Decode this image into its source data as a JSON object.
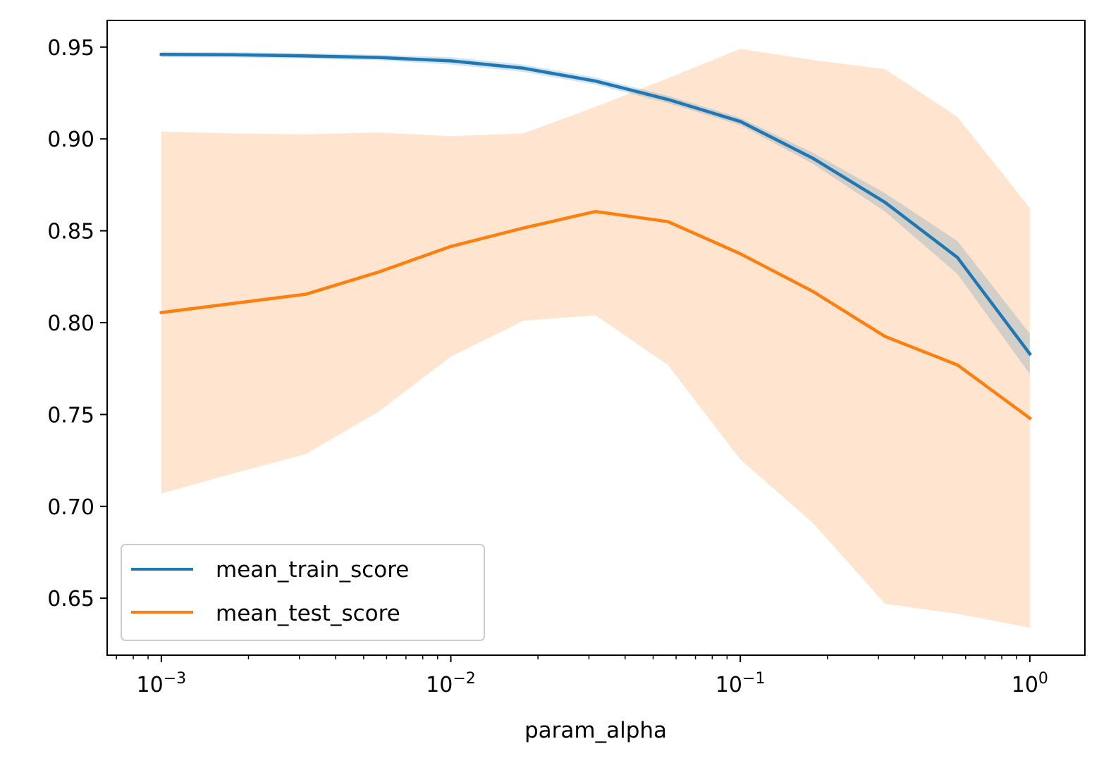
{
  "chart_data": {
    "type": "line",
    "xscale": "log",
    "xlabel": "param_alpha",
    "ylabel": "",
    "title": "",
    "xlim": [
      0.00065,
      1.55
    ],
    "ylim": [
      0.619,
      0.9645
    ],
    "grid": false,
    "legend_position": "lower-left",
    "x": [
      0.001,
      0.00178,
      0.00316,
      0.00562,
      0.01,
      0.0178,
      0.0316,
      0.0562,
      0.1,
      0.178,
      0.316,
      0.562,
      1.0
    ],
    "x_ticks": [
      0.001,
      0.01,
      0.1,
      1
    ],
    "x_tick_labels": [
      {
        "base": "10",
        "exp": "−3"
      },
      {
        "base": "10",
        "exp": "−2"
      },
      {
        "base": "10",
        "exp": "−1"
      },
      {
        "base": "10",
        "exp": "0"
      }
    ],
    "y_ticks": [
      0.65,
      0.7,
      0.75,
      0.8,
      0.85,
      0.9,
      0.95
    ],
    "y_tick_labels": [
      "0.65",
      "0.70",
      "0.75",
      "0.80",
      "0.85",
      "0.90",
      "0.95"
    ],
    "series": [
      {
        "name": "mean_train_score",
        "color": "#1f77b4",
        "band_color": "#1f77b4",
        "band_opacity": 0.2,
        "values": [
          0.946,
          0.9458,
          0.9452,
          0.9443,
          0.9425,
          0.9385,
          0.9315,
          0.9215,
          0.9095,
          0.8895,
          0.8655,
          0.8355,
          0.783
        ],
        "band_upper": [
          0.9475,
          0.9472,
          0.9467,
          0.9458,
          0.9445,
          0.9405,
          0.9335,
          0.9235,
          0.9115,
          0.8925,
          0.8705,
          0.8445,
          0.794
        ],
        "band_lower": [
          0.9445,
          0.9444,
          0.9437,
          0.9428,
          0.9405,
          0.9365,
          0.9295,
          0.9195,
          0.9075,
          0.8865,
          0.8605,
          0.8265,
          0.772
        ]
      },
      {
        "name": "mean_test_score",
        "color": "#ff7f0e",
        "band_color": "#ff7f0e",
        "band_opacity": 0.2,
        "values": [
          0.8055,
          0.8105,
          0.8155,
          0.8275,
          0.8415,
          0.8515,
          0.8605,
          0.855,
          0.8375,
          0.817,
          0.7925,
          0.777,
          0.748
        ],
        "band_upper": [
          0.904,
          0.903,
          0.9025,
          0.9035,
          0.9015,
          0.903,
          0.9175,
          0.933,
          0.949,
          0.943,
          0.938,
          0.912,
          0.8625
        ],
        "band_lower": [
          0.707,
          0.718,
          0.7285,
          0.7515,
          0.7815,
          0.801,
          0.804,
          0.777,
          0.7255,
          0.691,
          0.647,
          0.6415,
          0.634
        ]
      }
    ]
  }
}
